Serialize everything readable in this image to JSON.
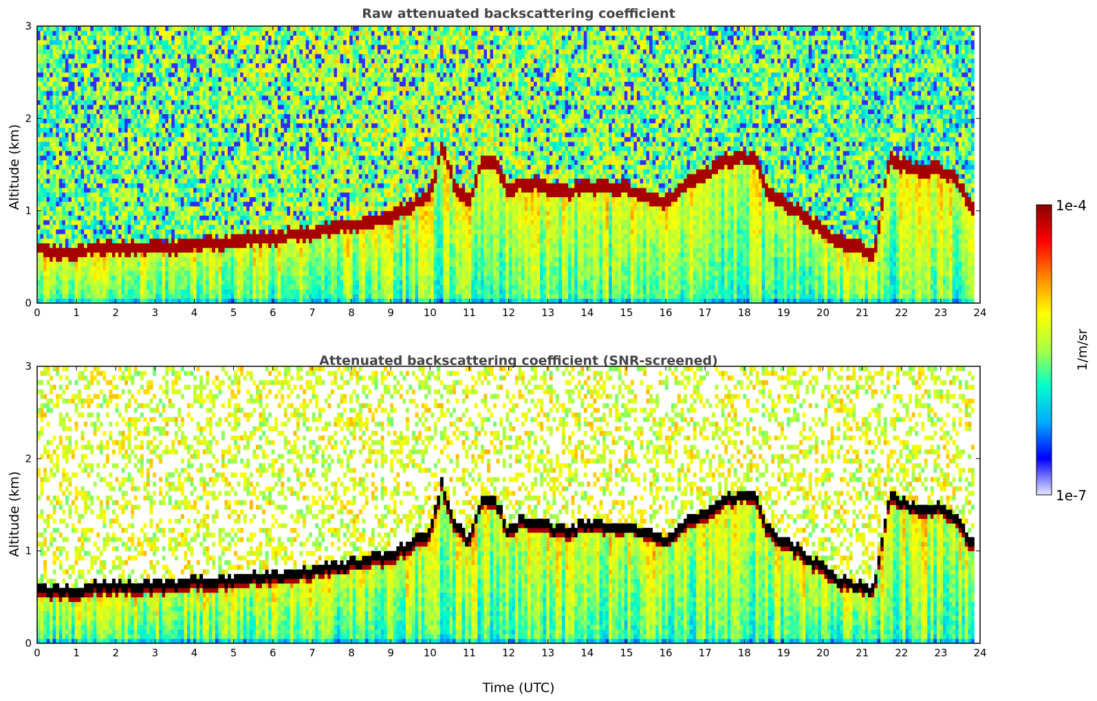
{
  "chart_data": [
    {
      "type": "heatmap",
      "title": "Raw attenuated backscattering coefficient",
      "xlabel": "",
      "ylabel": "Altitude (km)",
      "xlim": [
        0,
        24
      ],
      "ylim": [
        0,
        3
      ],
      "x_ticks": [
        "0",
        "1",
        "2",
        "3",
        "4",
        "5",
        "6",
        "7",
        "8",
        "9",
        "10",
        "11",
        "12",
        "13",
        "14",
        "15",
        "16",
        "17",
        "18",
        "19",
        "20",
        "21",
        "22",
        "23",
        "24"
      ],
      "y_ticks": [
        "0",
        "1",
        "2",
        "3"
      ],
      "screened": false,
      "layer_top_profile": {
        "time": [
          0,
          0.5,
          1,
          1.5,
          2,
          2.5,
          3,
          3.5,
          4,
          5,
          6,
          7,
          7.5,
          8,
          8.5,
          9,
          9.5,
          10,
          10.3,
          10.6,
          11,
          11.3,
          11.7,
          12,
          12.3,
          12.7,
          13,
          13.5,
          14,
          14.5,
          15,
          15.5,
          16,
          16.5,
          17,
          17.5,
          18,
          18.3,
          18.6,
          19,
          19.5,
          20,
          20.5,
          21,
          21.3,
          21.7,
          22,
          22.5,
          23,
          23.4,
          23.8
        ],
        "altitude_km": [
          0.6,
          0.55,
          0.55,
          0.6,
          0.6,
          0.6,
          0.62,
          0.63,
          0.65,
          0.68,
          0.72,
          0.77,
          0.82,
          0.85,
          0.9,
          0.95,
          1.05,
          1.2,
          1.7,
          1.3,
          1.1,
          1.55,
          1.5,
          1.2,
          1.3,
          1.3,
          1.25,
          1.2,
          1.3,
          1.25,
          1.25,
          1.2,
          1.1,
          1.3,
          1.4,
          1.55,
          1.6,
          1.55,
          1.2,
          1.1,
          0.95,
          0.8,
          0.65,
          0.6,
          0.55,
          1.6,
          1.5,
          1.45,
          1.45,
          1.35,
          1.05
        ]
      }
    },
    {
      "type": "heatmap",
      "title": "Attenuated backscattering coefficient (SNR-screened)",
      "xlabel": "Time (UTC)",
      "ylabel": "Altitude (km)",
      "xlim": [
        0,
        24
      ],
      "ylim": [
        0,
        3
      ],
      "x_ticks": [
        "0",
        "1",
        "2",
        "3",
        "4",
        "5",
        "6",
        "7",
        "8",
        "9",
        "10",
        "11",
        "12",
        "13",
        "14",
        "15",
        "16",
        "17",
        "18",
        "19",
        "20",
        "21",
        "22",
        "23",
        "24"
      ],
      "y_ticks": [
        "0",
        "1",
        "2",
        "3"
      ],
      "screened": true,
      "layer_top_profile": {
        "time": [
          0,
          0.5,
          1,
          1.5,
          2,
          2.5,
          3,
          3.5,
          4,
          5,
          6,
          7,
          7.5,
          8,
          8.5,
          9,
          9.5,
          10,
          10.3,
          10.6,
          11,
          11.3,
          11.7,
          12,
          12.3,
          12.7,
          13,
          13.5,
          14,
          14.5,
          15,
          15.5,
          16,
          16.5,
          17,
          17.5,
          18,
          18.3,
          18.6,
          19,
          19.5,
          20,
          20.5,
          21,
          21.3,
          21.7,
          22,
          22.5,
          23,
          23.4,
          23.8
        ],
        "altitude_km": [
          0.6,
          0.55,
          0.55,
          0.6,
          0.6,
          0.6,
          0.62,
          0.63,
          0.65,
          0.68,
          0.72,
          0.77,
          0.82,
          0.85,
          0.9,
          0.95,
          1.05,
          1.2,
          1.7,
          1.3,
          1.1,
          1.55,
          1.5,
          1.2,
          1.3,
          1.3,
          1.25,
          1.2,
          1.3,
          1.25,
          1.25,
          1.2,
          1.1,
          1.3,
          1.4,
          1.55,
          1.6,
          1.55,
          1.2,
          1.1,
          0.95,
          0.8,
          0.65,
          0.6,
          0.55,
          1.6,
          1.5,
          1.45,
          1.45,
          1.35,
          1.05
        ]
      }
    }
  ],
  "colorbar": {
    "label": "1/m/sr",
    "max_label": "1e-4",
    "min_label": "1e-7",
    "scale": "log",
    "colormap": [
      "#e8e8ff",
      "#0000ff",
      "#00aaff",
      "#00ffcc",
      "#aaff44",
      "#ffff00",
      "#ff8800",
      "#ff0000",
      "#8b0000"
    ]
  }
}
